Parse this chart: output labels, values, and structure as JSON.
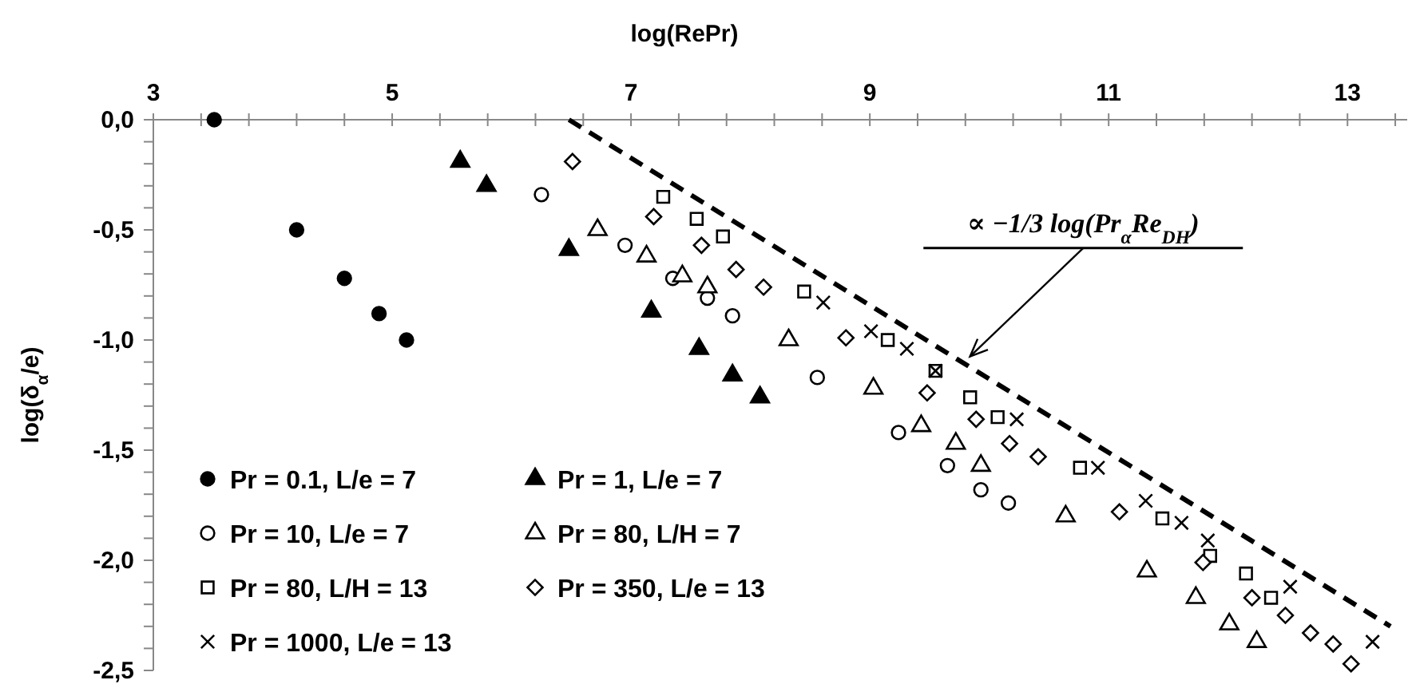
{
  "chart_data": {
    "type": "scatter",
    "xlabel": "log(RePr)",
    "ylabel": "log(δ$_{α}$/e)",
    "xlim": [
      3,
      13.5
    ],
    "ylim": [
      -2.5,
      0
    ],
    "xticks": [
      3,
      {
        "value": 3.4,
        "label": null
      },
      {
        "value": 3.8,
        "label": null
      },
      {
        "value": 4.2,
        "label": null
      },
      {
        "value": 4.6,
        "label": null
      },
      5,
      {
        "value": 5.4,
        "label": null
      },
      {
        "value": 5.8,
        "label": null
      },
      {
        "value": 6.2,
        "label": null
      },
      {
        "value": 6.6,
        "label": null
      },
      7,
      {
        "value": 7.4,
        "label": null
      },
      {
        "value": 7.8,
        "label": null
      },
      {
        "value": 8.2,
        "label": null
      },
      {
        "value": 8.6,
        "label": null
      },
      9,
      {
        "value": 9.4,
        "label": null
      },
      {
        "value": 9.8,
        "label": null
      },
      {
        "value": 10.2,
        "label": null
      },
      {
        "value": 10.6,
        "label": null
      },
      11,
      {
        "value": 11.4,
        "label": null
      },
      {
        "value": 11.8,
        "label": null
      },
      {
        "value": 12.2,
        "label": null
      },
      {
        "value": 12.6,
        "label": null
      },
      13,
      {
        "value": 13.4,
        "label": null
      }
    ],
    "yticks": [
      {
        "value": 0,
        "label": "0,0"
      },
      {
        "value": -0.1,
        "label": null
      },
      {
        "value": -0.2,
        "label": null
      },
      {
        "value": -0.3,
        "label": null
      },
      {
        "value": -0.4,
        "label": null
      },
      {
        "value": -0.5,
        "label": "-0,5"
      },
      {
        "value": -0.6,
        "label": null
      },
      {
        "value": -0.7,
        "label": null
      },
      {
        "value": -0.8,
        "label": null
      },
      {
        "value": -0.9,
        "label": null
      },
      {
        "value": -1,
        "label": "-1,0"
      },
      {
        "value": -1.1,
        "label": null
      },
      {
        "value": -1.2,
        "label": null
      },
      {
        "value": -1.3,
        "label": null
      },
      {
        "value": -1.4,
        "label": null
      },
      {
        "value": -1.5,
        "label": "-1,5"
      },
      {
        "value": -1.6,
        "label": null
      },
      {
        "value": -1.7,
        "label": null
      },
      {
        "value": -1.8,
        "label": null
      },
      {
        "value": -1.9,
        "label": null
      },
      {
        "value": -2,
        "label": "-2,0"
      },
      {
        "value": -2.1,
        "label": null
      },
      {
        "value": -2.2,
        "label": null
      },
      {
        "value": -2.3,
        "label": null
      },
      {
        "value": -2.4,
        "label": null
      },
      {
        "value": -2.5,
        "label": "-2,5"
      }
    ],
    "grid": false,
    "legend": "bottom left",
    "annotations": [
      {
        "text": "∝ −1/3 log(Pr$_{α}$Re$_{DH}$)",
        "x": 9.81,
        "y": -1.09
      }
    ],
    "series": [
      {
        "name": "Pr = 0.1, L/e = 7",
        "color": "#000000",
        "marker": "circle",
        "x": [
          3.51,
          4.2,
          4.6,
          4.89,
          5.12
        ],
        "values": [
          0,
          -0.5,
          -0.72,
          -0.88,
          -1.0
        ]
      },
      {
        "name": "Pr = 1, L/e = 7",
        "color": "#000000",
        "marker": "triangle",
        "x": [
          5.57,
          5.79,
          6.48,
          7.17,
          7.57,
          7.85,
          8.08
        ],
        "values": [
          -0.19,
          -0.3,
          -0.59,
          -0.87,
          -1.04,
          -1.16,
          -1.26
        ]
      },
      {
        "name": "Pr = 10, L/e = 7",
        "color": "#000000",
        "marker": "circle-open",
        "x": [
          6.25,
          6.95,
          7.35,
          7.64,
          7.85,
          8.56,
          9.24,
          9.65,
          9.93,
          10.16
        ],
        "values": [
          -0.34,
          -0.57,
          -0.72,
          -0.81,
          -0.89,
          -1.17,
          -1.42,
          -1.57,
          -1.68,
          -1.74
        ]
      },
      {
        "name": "Pr = 80, L/H = 7",
        "color": "#000000",
        "marker": "triangle-open",
        "x": [
          6.72,
          7.13,
          7.43,
          7.64,
          8.32,
          9.03,
          9.43,
          9.72,
          9.93,
          10.64,
          11.32,
          11.73,
          12.01,
          12.24
        ],
        "values": [
          -0.5,
          -0.62,
          -0.71,
          -0.76,
          -1.0,
          -1.22,
          -1.39,
          -1.47,
          -1.57,
          -1.8,
          -2.05,
          -2.17,
          -2.29,
          -2.37
        ]
      },
      {
        "name": "Pr = 80, L/H = 13",
        "color": "#000000",
        "marker": "square-open",
        "x": [
          7.27,
          7.55,
          7.77,
          8.45,
          9.15,
          9.55,
          9.84,
          10.07,
          10.76,
          11.45,
          11.85,
          12.15,
          12.36
        ],
        "values": [
          -0.35,
          -0.45,
          -0.53,
          -0.78,
          -1.0,
          -1.14,
          -1.26,
          -1.35,
          -1.58,
          -1.81,
          -1.98,
          -2.06,
          -2.17
        ]
      },
      {
        "name": "Pr = 350, L/e = 13",
        "color": "#000000",
        "marker": "diamond-open",
        "x": [
          6.51,
          7.19,
          7.59,
          7.88,
          8.11,
          8.8,
          9.48,
          9.89,
          10.17,
          10.41,
          11.09,
          11.79,
          12.2,
          12.48,
          12.69,
          12.88,
          13.03
        ],
        "values": [
          -0.19,
          -0.44,
          -0.57,
          -0.68,
          -0.76,
          -0.99,
          -1.24,
          -1.36,
          -1.47,
          -1.53,
          -1.78,
          -2.01,
          -2.17,
          -2.25,
          -2.33,
          -2.38,
          -2.47
        ]
      },
      {
        "name": "Pr = 1000, L/e = 13",
        "color": "#000000",
        "marker": "cross",
        "x": [
          8.61,
          9.01,
          9.31,
          9.55,
          10.23,
          10.91,
          11.31,
          11.61,
          11.83,
          12.52,
          13.21
        ],
        "values": [
          -0.83,
          -0.96,
          -1.04,
          -1.14,
          -1.36,
          -1.58,
          -1.73,
          -1.83,
          -1.91,
          -2.12,
          -2.37
        ]
      },
      {
        "type": "line",
        "color": "#000000",
        "line_style": "dashed",
        "marker": "none",
        "x": [
          6.48,
          13.36
        ],
        "values": [
          0,
          -2.3
        ]
      }
    ]
  }
}
